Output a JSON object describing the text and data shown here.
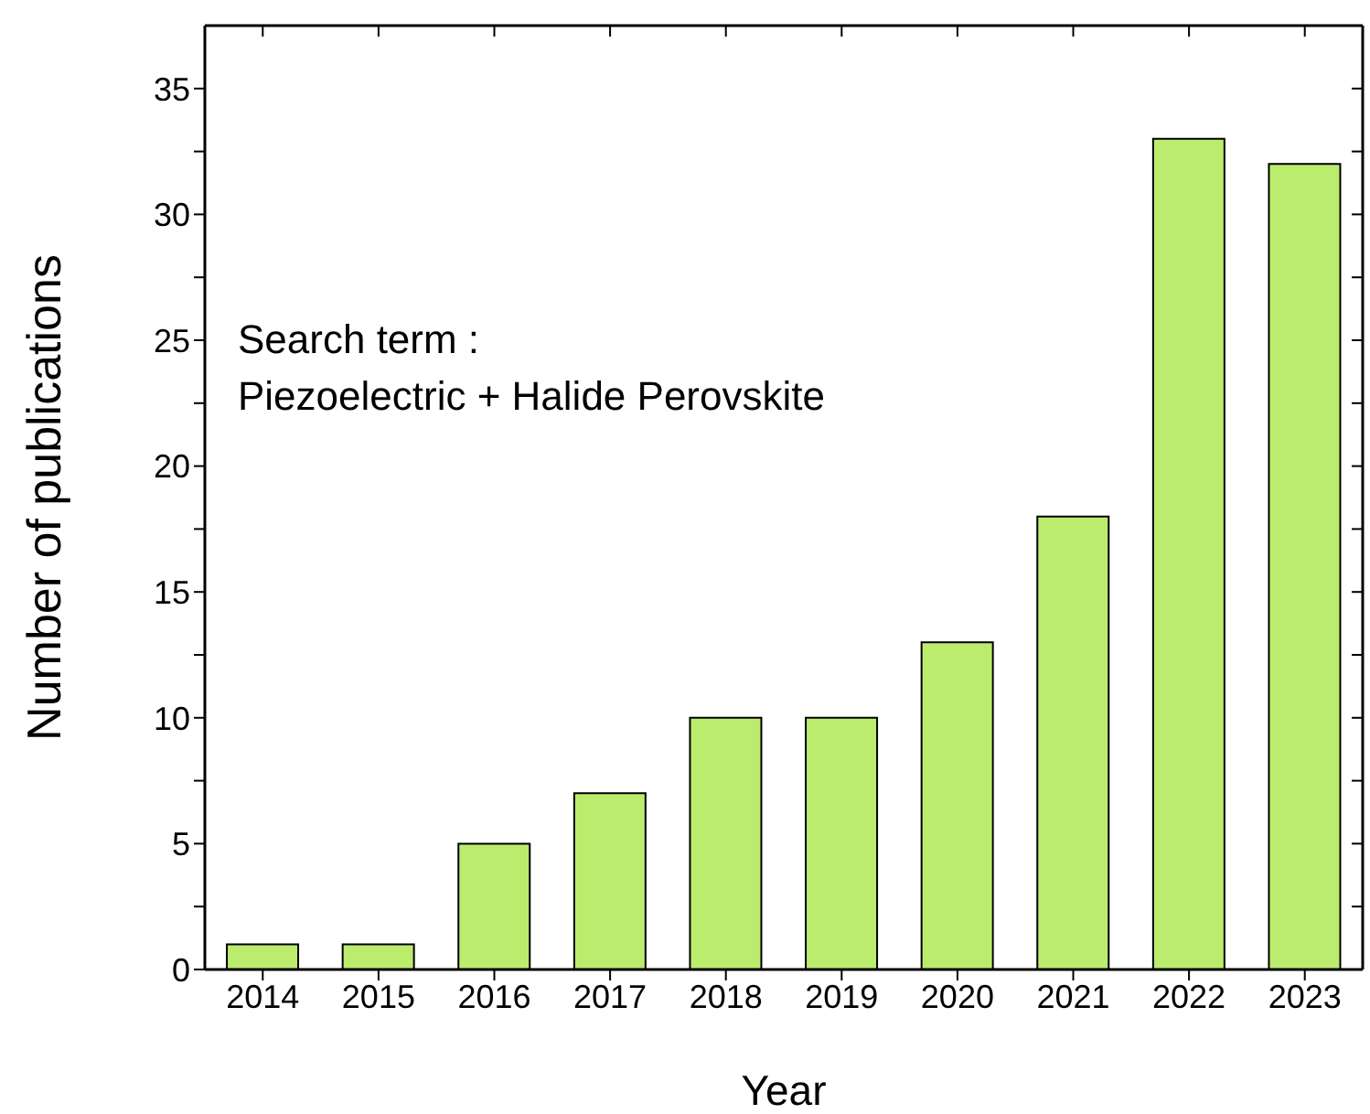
{
  "chart_data": {
    "type": "bar",
    "xlabel": "Year",
    "ylabel": "Number of publications",
    "categories": [
      "2014",
      "2015",
      "2016",
      "2017",
      "2018",
      "2019",
      "2020",
      "2021",
      "2022",
      "2023"
    ],
    "values": [
      1,
      1,
      5,
      7,
      10,
      10,
      13,
      18,
      33,
      32
    ],
    "color": "#bbec6e",
    "ylim": [
      0,
      37.5
    ],
    "yticks": [
      0,
      {
        "value": 2.5,
        "label": null
      },
      5,
      {
        "value": 7.5,
        "label": null
      },
      10,
      {
        "value": 12.5,
        "label": null
      },
      15,
      {
        "value": 17.5,
        "label": null
      },
      20,
      {
        "value": 22.5,
        "label": null
      },
      25,
      {
        "value": 27.5,
        "label": null
      },
      30,
      {
        "value": 32.5,
        "label": null
      },
      35
    ],
    "annotations": [
      "Search term :",
      "Piezoelectric + Halide Perovskite"
    ],
    "grid": false
  }
}
